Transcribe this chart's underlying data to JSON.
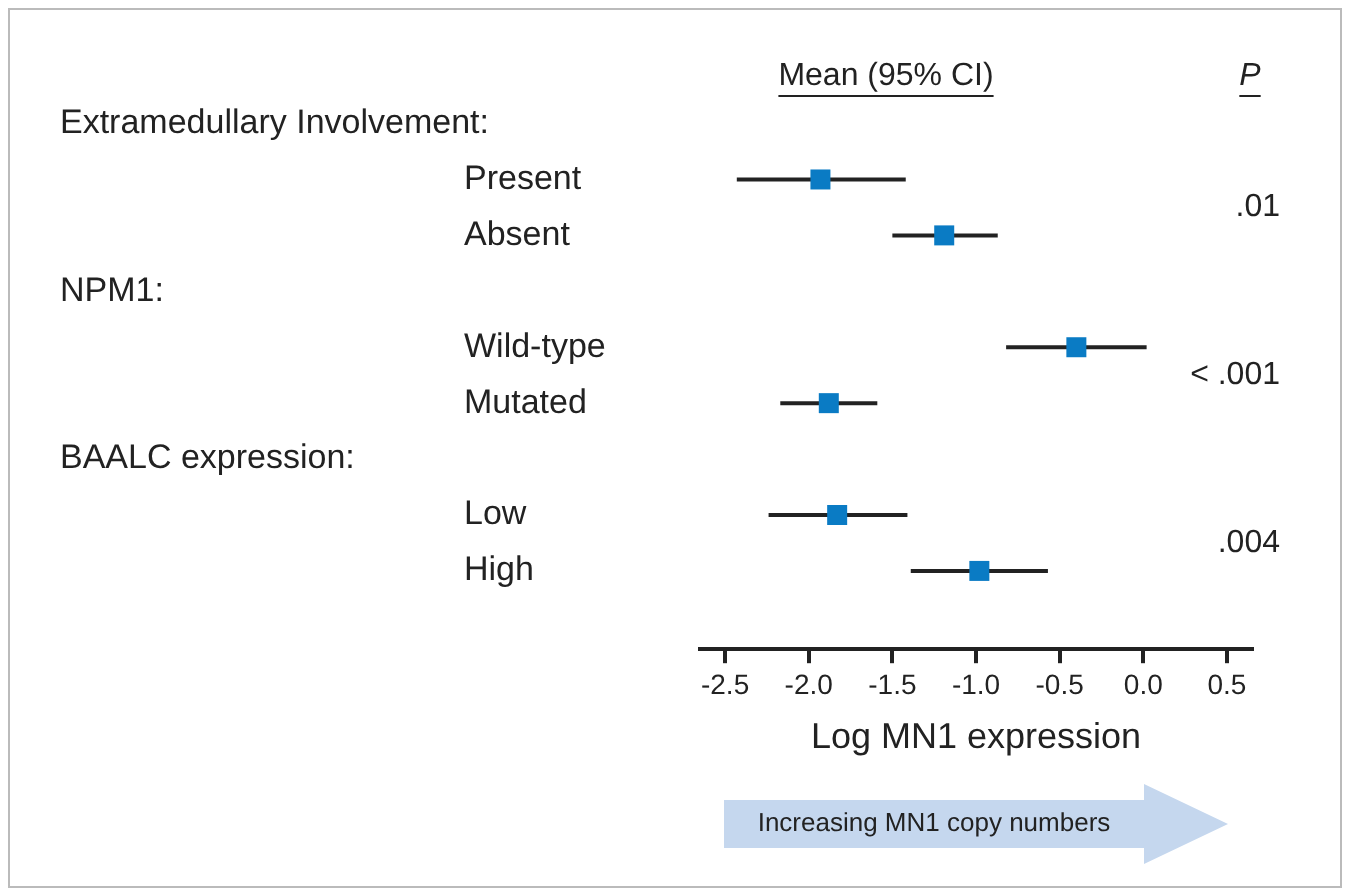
{
  "chart_data": {
    "type": "scatter",
    "orientation": "horizontal",
    "marker": "square",
    "grid": false,
    "legend": false,
    "color": "#0a7bc4",
    "categories": [
      "Present",
      "Absent",
      "Wild-type",
      "Mutated",
      "Low",
      "High"
    ],
    "values": [
      -1.93,
      -1.19,
      -0.4,
      -1.88,
      -1.83,
      -0.98
    ],
    "errors": [
      [
        -2.43,
        -1.42
      ],
      [
        -1.5,
        -0.87
      ],
      [
        -0.82,
        0.02
      ],
      [
        -2.17,
        -1.59
      ],
      [
        -2.24,
        -1.41
      ],
      [
        -1.39,
        -0.57
      ]
    ],
    "xlabel": "Log MN1 expression",
    "xlim": [
      -2.65,
      0.65
    ],
    "xticks": [
      -2.5,
      {
        "value": -2,
        "label": "-2.0"
      },
      -1.5,
      {
        "value": -1,
        "label": "-1.0"
      },
      -0.5,
      {
        "value": 0,
        "label": "0.0"
      },
      0.5
    ],
    "annotations": [
      "Mean (95% CI)",
      "P",
      "Extramedullary Involvement:",
      "NPM1:",
      "BAALC expression:",
      ".01",
      "< .001",
      ".004",
      "Increasing MN1 copy numbers"
    ]
  }
}
